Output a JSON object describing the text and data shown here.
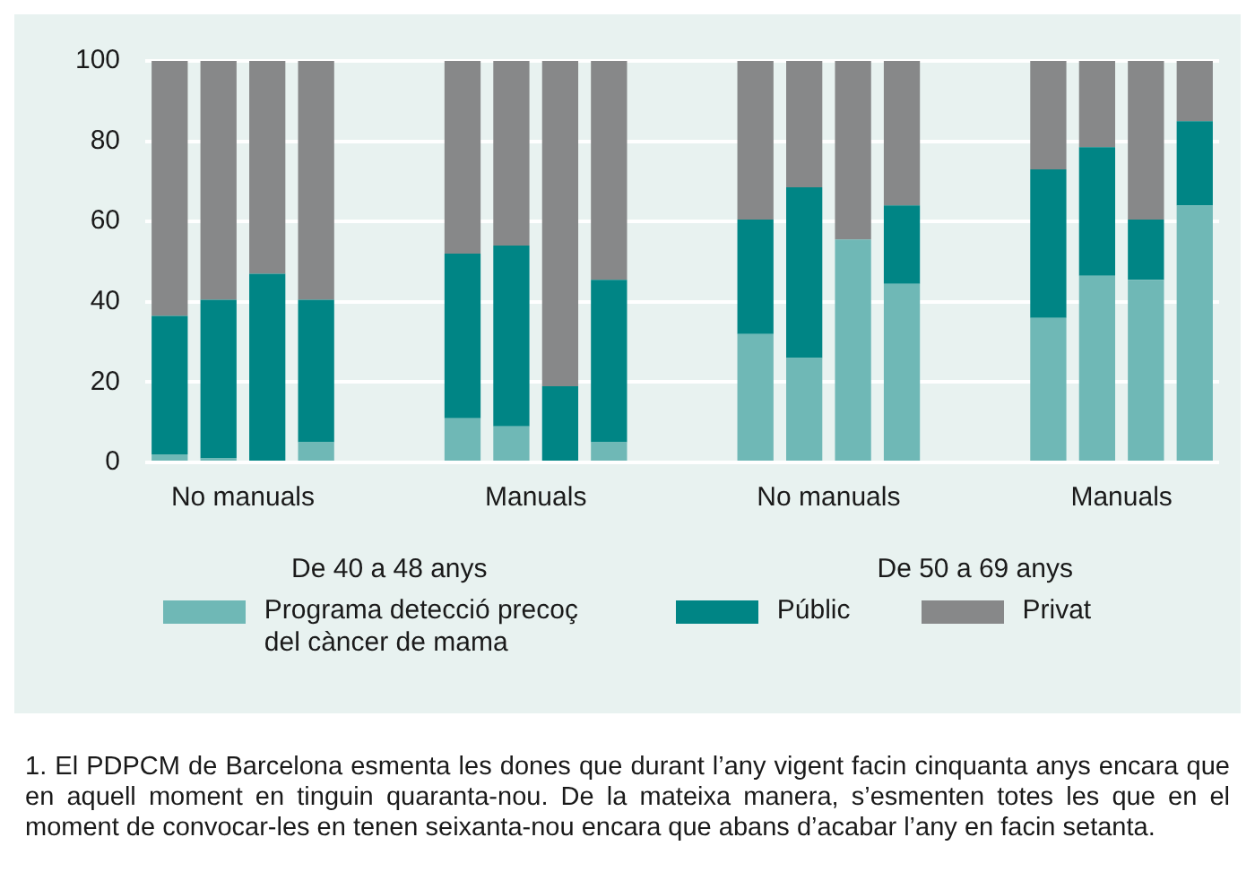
{
  "chart_data": {
    "type": "bar",
    "stacked": true,
    "categories": [
      null,
      null,
      null,
      null,
      null,
      null,
      null,
      null,
      null,
      null,
      null,
      null,
      null,
      null,
      null,
      null,
      null,
      null,
      null,
      null,
      null,
      null
    ],
    "series": [
      {
        "name": "Programa detecció precoç del càncer de mama",
        "color": "#6fb8b6",
        "values": [
          2,
          1,
          0,
          5,
          null,
          null,
          11,
          9,
          0,
          5,
          null,
          null,
          32,
          26,
          55.5,
          44.5,
          null,
          null,
          36,
          46.5,
          45.5,
          64
        ]
      },
      {
        "name": "Públic",
        "color": "#008585",
        "values": [
          34.5,
          39.5,
          47,
          35.5,
          null,
          null,
          41,
          45,
          19,
          40.5,
          null,
          null,
          28.5,
          42.5,
          0,
          19.5,
          null,
          null,
          37,
          32,
          15,
          21
        ]
      },
      {
        "name": "Privat",
        "color": "#878889",
        "values": [
          63.5,
          59.5,
          53,
          59.5,
          null,
          null,
          48,
          46,
          81,
          54.5,
          null,
          null,
          39.5,
          31.5,
          44.5,
          36,
          null,
          null,
          27,
          21.5,
          39.5,
          15
        ]
      }
    ],
    "ylim": [
      0,
      100
    ],
    "yticks": [
      0,
      20,
      40,
      60,
      80,
      100
    ],
    "grid": "y",
    "legend": "bottom",
    "annotations": [
      "No manuals",
      "Manuals",
      "No manuals",
      "Manuals",
      "De 40 a 48 anys",
      "De 50 a 69 anys",
      "1. El PDPCM de Barcelona esmenta les dones que durant l’any vigent facin cinquanta anys encara que en aquell moment en tinguin quaranta-nou. De la mateixa manera, s’esmenten totes les que en el moment de convocar-les en tenen seixanta-nou encara que abans d’acabar l’any en facin setanta."
    ]
  }
}
